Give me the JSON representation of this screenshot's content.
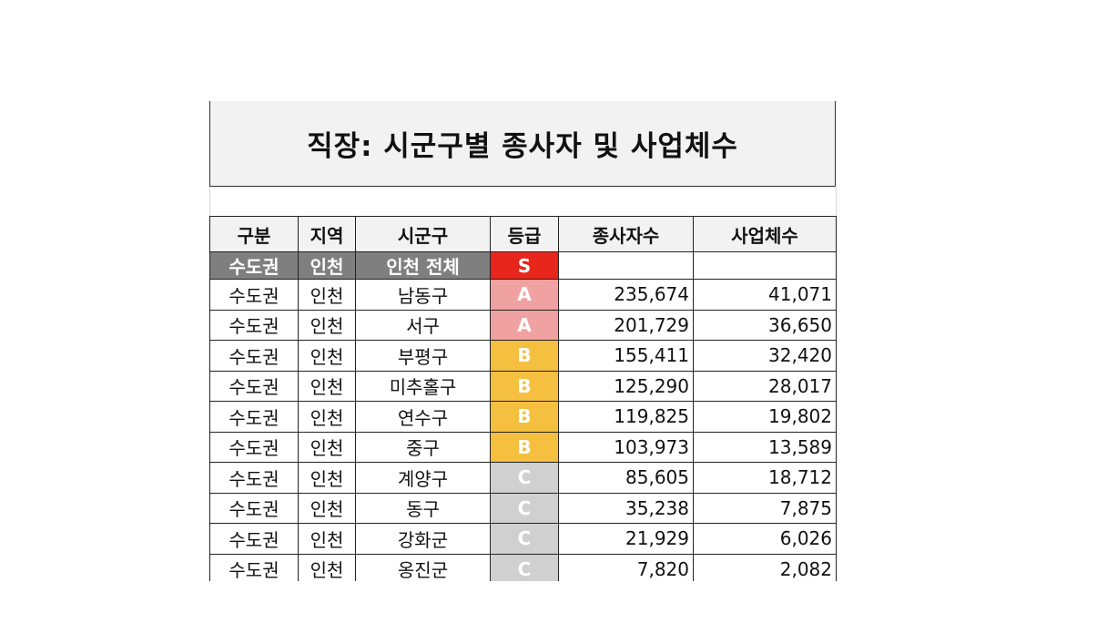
{
  "title": "직장: 시군구별 종사자 및 사업체수",
  "table": {
    "headers": [
      "구분",
      "지역",
      "시군구",
      "등급",
      "종사자수",
      "사업체수"
    ],
    "total_row": {
      "group": "수도권",
      "region": "인천",
      "district": "인천 전체",
      "grade": "S",
      "workers": "",
      "businesses": ""
    },
    "rows": [
      {
        "group": "수도권",
        "region": "인천",
        "district": "남동구",
        "grade": "A",
        "workers": "235,674",
        "businesses": "41,071"
      },
      {
        "group": "수도권",
        "region": "인천",
        "district": "서구",
        "grade": "A",
        "workers": "201,729",
        "businesses": "36,650"
      },
      {
        "group": "수도권",
        "region": "인천",
        "district": "부평구",
        "grade": "B",
        "workers": "155,411",
        "businesses": "32,420"
      },
      {
        "group": "수도권",
        "region": "인천",
        "district": "미추홀구",
        "grade": "B",
        "workers": "125,290",
        "businesses": "28,017"
      },
      {
        "group": "수도권",
        "region": "인천",
        "district": "연수구",
        "grade": "B",
        "workers": "119,825",
        "businesses": "19,802"
      },
      {
        "group": "수도권",
        "region": "인천",
        "district": "중구",
        "grade": "B",
        "workers": "103,973",
        "businesses": "13,589"
      },
      {
        "group": "수도권",
        "region": "인천",
        "district": "계양구",
        "grade": "C",
        "workers": "85,605",
        "businesses": "18,712"
      },
      {
        "group": "수도권",
        "region": "인천",
        "district": "동구",
        "grade": "C",
        "workers": "35,238",
        "businesses": "7,875"
      },
      {
        "group": "수도권",
        "region": "인천",
        "district": "강화군",
        "grade": "C",
        "workers": "21,929",
        "businesses": "6,026"
      },
      {
        "group": "수도권",
        "region": "인천",
        "district": "옹진군",
        "grade": "C",
        "workers": "7,820",
        "businesses": "2,082"
      }
    ]
  },
  "grade_colors": {
    "S": "#e8261c",
    "A": "#f0a1a1",
    "B": "#f5bf3f",
    "C": "#d0d0d0"
  }
}
